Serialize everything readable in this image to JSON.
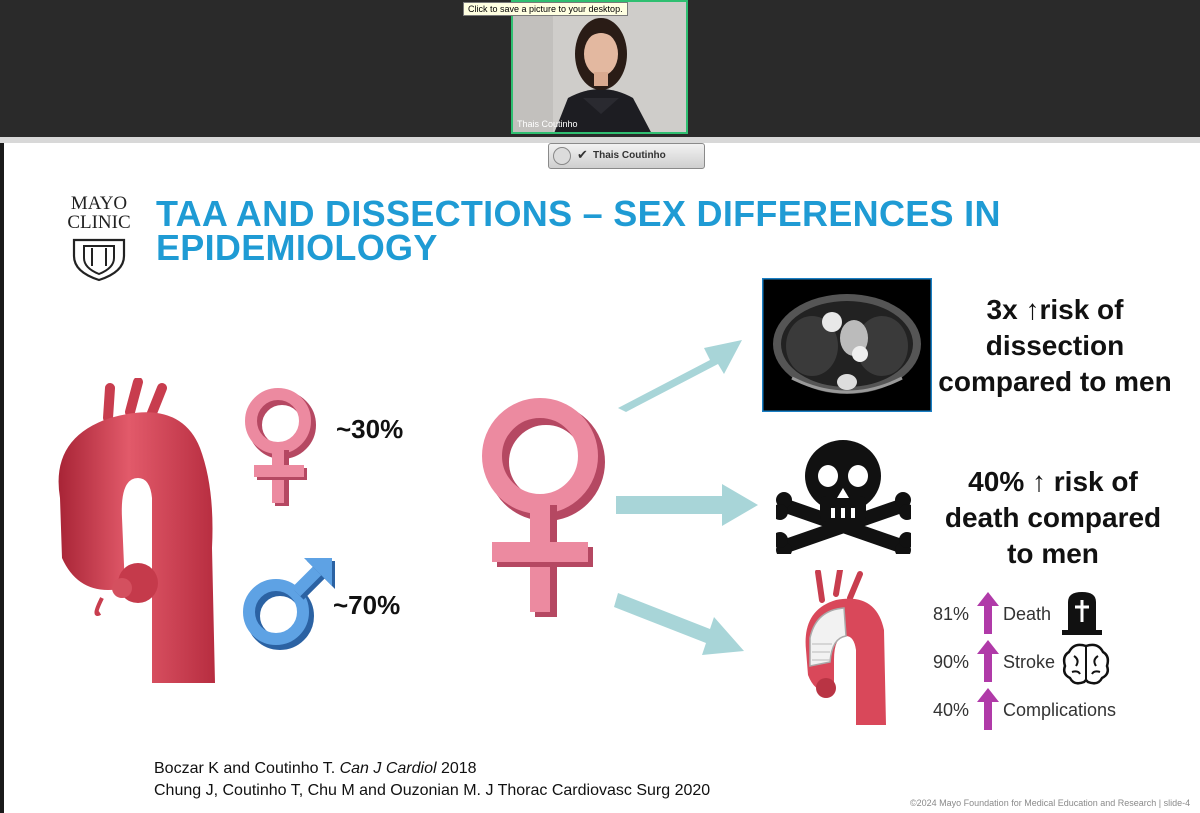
{
  "meeting": {
    "tooltip": "Click to save a picture to your desktop.",
    "speaker_name": "Thais Coutinho",
    "pinned_name": "Thais Coutinho"
  },
  "slide": {
    "logo_line1": "MAYO",
    "logo_line2": "CLINIC",
    "title_line1": "TAA AND DISSECTIONS – SEX DIFFERENCES IN",
    "title_line2": "EPIDEMIOLOGY",
    "female_pct": "~30%",
    "male_pct": "~70%",
    "stat_dissection": [
      "3x ↑risk of",
      "dissection",
      "compared to men"
    ],
    "stat_death": [
      "40% ↑ risk of",
      "death compared",
      "to men"
    ],
    "outcomes": [
      {
        "pct": "81%",
        "label": "Death"
      },
      {
        "pct": "90%",
        "label": "Stroke"
      },
      {
        "pct": "40%",
        "label": "Complications"
      }
    ],
    "ref1_plain": "Boczar K and Coutinho T. ",
    "ref1_journal": "Can J Cardiol",
    "ref1_year": " 2018",
    "ref2": "Chung J, Coutinho T, Chu M and Ouzonian M. J Thorac Cardiovasc Surg 2020",
    "copyright": "©2024 Mayo Foundation for Medical Education and Research  |  slide-4"
  },
  "colors": {
    "title": "#1f9bd4",
    "female": "#e8788f",
    "male": "#4a90d9",
    "arrow": "#a8d5d8",
    "up_arrow": "#b03aa8"
  }
}
